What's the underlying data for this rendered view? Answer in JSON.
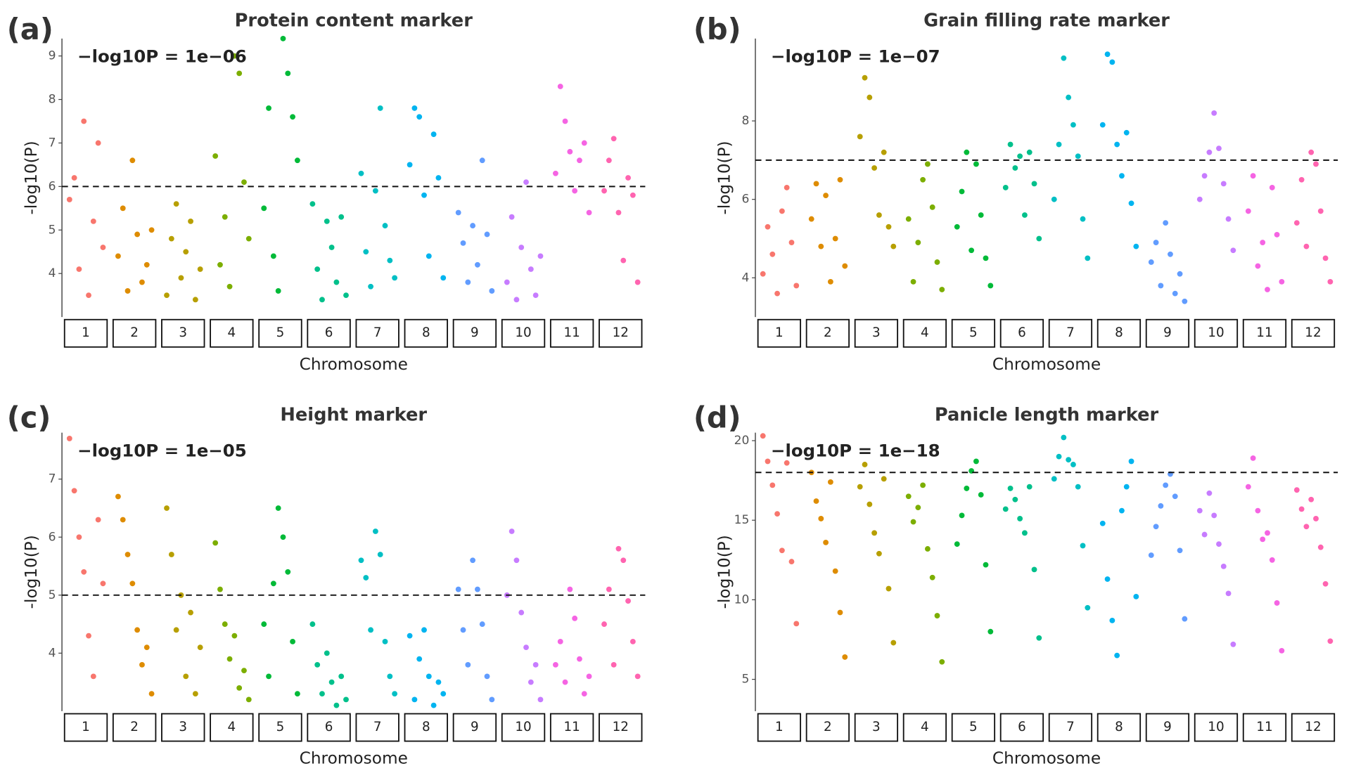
{
  "chart_data": [
    {
      "type": "manhattan",
      "panel_label": "(a)",
      "title": "Protein content marker",
      "annotation": "−log10P = 1e−06",
      "ylabel": "-log10(P)",
      "xlabel": "Chromosome",
      "threshold": 6,
      "ylim": [
        3,
        9.4
      ],
      "yticks": [
        4,
        5,
        6,
        7,
        8,
        9
      ],
      "categories": [
        "1",
        "2",
        "3",
        "4",
        "5",
        "6",
        "7",
        "8",
        "9",
        "10",
        "11",
        "12"
      ],
      "colors": [
        "#F8766D",
        "#DE8C00",
        "#B79F00",
        "#7CAE00",
        "#00BA38",
        "#00C08B",
        "#00BFC4",
        "#00B4F0",
        "#619CFF",
        "#C77CFF",
        "#F564E3",
        "#FF64B0"
      ],
      "values": [
        [
          5.7,
          6.2,
          4.1,
          7.5,
          3.5,
          5.2,
          7.0,
          4.6
        ],
        [
          4.4,
          5.5,
          3.6,
          6.6,
          4.9,
          3.8,
          4.2,
          5.0
        ],
        [
          3.5,
          4.8,
          5.6,
          3.9,
          4.5,
          5.2,
          3.4,
          4.1
        ],
        [
          6.7,
          4.2,
          5.3,
          3.7,
          9.0,
          8.6,
          6.1,
          4.8
        ],
        [
          5.5,
          7.8,
          4.4,
          3.6,
          9.4,
          8.6,
          7.6,
          6.6
        ],
        [
          5.6,
          4.1,
          3.4,
          5.2,
          4.6,
          3.8,
          5.3,
          3.5
        ],
        [
          6.3,
          4.5,
          3.7,
          5.9,
          7.8,
          5.1,
          4.3,
          3.9
        ],
        [
          6.5,
          7.8,
          7.6,
          5.8,
          4.4,
          7.2,
          6.2,
          3.9
        ],
        [
          5.4,
          4.7,
          3.8,
          5.1,
          4.2,
          6.6,
          4.9,
          3.6
        ],
        [
          3.8,
          5.3,
          3.4,
          4.6,
          6.1,
          4.1,
          3.5,
          4.4
        ],
        [
          6.3,
          8.3,
          7.5,
          6.8,
          5.9,
          6.6,
          7.0,
          5.4
        ],
        [
          5.9,
          6.6,
          7.1,
          5.4,
          4.3,
          6.2,
          5.8,
          3.8
        ]
      ]
    },
    {
      "type": "manhattan",
      "panel_label": "(b)",
      "title": "Grain filling rate marker",
      "annotation": "−log10P = 1e−07",
      "ylabel": "-log10(P)",
      "xlabel": "Chromosome",
      "threshold": 7,
      "ylim": [
        3,
        10.1
      ],
      "yticks": [
        4,
        6,
        8
      ],
      "categories": [
        "1",
        "2",
        "3",
        "4",
        "5",
        "6",
        "7",
        "8",
        "9",
        "10",
        "11",
        "12"
      ],
      "colors": [
        "#F8766D",
        "#DE8C00",
        "#B79F00",
        "#7CAE00",
        "#00BA38",
        "#00C08B",
        "#00BFC4",
        "#00B4F0",
        "#619CFF",
        "#C77CFF",
        "#F564E3",
        "#FF64B0"
      ],
      "values": [
        [
          4.1,
          5.3,
          4.6,
          3.6,
          5.7,
          6.3,
          4.9,
          3.8
        ],
        [
          5.5,
          6.4,
          4.8,
          6.1,
          3.9,
          5.0,
          6.5,
          4.3
        ],
        [
          7.6,
          9.1,
          8.6,
          6.8,
          5.6,
          7.2,
          5.3,
          4.8
        ],
        [
          5.5,
          3.9,
          4.9,
          6.5,
          6.9,
          5.8,
          4.4,
          3.7
        ],
        [
          5.3,
          6.2,
          7.2,
          4.7,
          6.9,
          5.6,
          4.5,
          3.8
        ],
        [
          6.3,
          7.4,
          6.8,
          7.1,
          5.6,
          7.2,
          6.4,
          5.0
        ],
        [
          6.0,
          7.4,
          9.6,
          8.6,
          7.9,
          7.1,
          5.5,
          4.5
        ],
        [
          7.9,
          9.7,
          9.5,
          7.4,
          6.6,
          7.7,
          5.9,
          4.8
        ],
        [
          4.4,
          4.9,
          3.8,
          5.4,
          4.6,
          3.6,
          4.1,
          3.4
        ],
        [
          6.0,
          6.6,
          7.2,
          8.2,
          7.3,
          6.4,
          5.5,
          4.7
        ],
        [
          5.7,
          6.6,
          4.3,
          4.9,
          3.7,
          6.3,
          5.1,
          3.9
        ],
        [
          5.4,
          6.5,
          4.8,
          7.2,
          6.9,
          5.7,
          4.5,
          3.9
        ]
      ]
    },
    {
      "type": "manhattan",
      "panel_label": "(c)",
      "title": "Height marker",
      "annotation": "−log10P = 1e−05",
      "ylabel": "-log10(P)",
      "xlabel": "Chromosome",
      "threshold": 5,
      "ylim": [
        3,
        7.8
      ],
      "yticks": [
        4,
        5,
        6,
        7
      ],
      "categories": [
        "1",
        "2",
        "3",
        "4",
        "5",
        "6",
        "7",
        "8",
        "9",
        "10",
        "11",
        "12"
      ],
      "colors": [
        "#F8766D",
        "#DE8C00",
        "#B79F00",
        "#7CAE00",
        "#00BA38",
        "#00C08B",
        "#00BFC4",
        "#00B4F0",
        "#619CFF",
        "#C77CFF",
        "#F564E3",
        "#FF64B0"
      ],
      "values": [
        [
          7.7,
          6.8,
          6.0,
          5.4,
          4.3,
          3.6,
          6.3,
          5.2
        ],
        [
          6.7,
          6.3,
          5.7,
          5.2,
          4.4,
          3.8,
          4.1,
          3.3
        ],
        [
          6.5,
          5.7,
          4.4,
          5.0,
          3.6,
          4.7,
          3.3,
          4.1
        ],
        [
          5.9,
          5.1,
          4.5,
          3.9,
          4.3,
          3.4,
          3.7,
          3.2
        ],
        [
          4.5,
          3.6,
          5.2,
          6.5,
          6.0,
          5.4,
          4.2,
          3.3
        ],
        [
          4.5,
          3.8,
          3.3,
          4.0,
          3.5,
          3.1,
          3.6,
          3.2
        ],
        [
          5.6,
          5.3,
          4.4,
          6.1,
          5.7,
          4.2,
          3.6,
          3.3
        ],
        [
          4.3,
          3.2,
          3.9,
          4.4,
          3.6,
          3.1,
          3.5,
          3.3
        ],
        [
          5.1,
          4.4,
          3.8,
          5.6,
          5.1,
          4.5,
          3.6,
          3.2
        ],
        [
          5.0,
          6.1,
          5.6,
          4.7,
          4.1,
          3.5,
          3.8,
          3.2
        ],
        [
          3.8,
          4.2,
          3.5,
          5.1,
          4.6,
          3.9,
          3.3,
          3.6
        ],
        [
          4.5,
          5.1,
          3.8,
          5.8,
          5.6,
          4.9,
          4.2,
          3.6
        ]
      ]
    },
    {
      "type": "manhattan",
      "panel_label": "(d)",
      "title": "Panicle length marker",
      "annotation": "−log10P = 1e−18",
      "ylabel": "-log10(P)",
      "xlabel": "Chromosome",
      "threshold": 18,
      "ylim": [
        3,
        20.5
      ],
      "yticks": [
        5,
        10,
        15,
        20
      ],
      "categories": [
        "1",
        "2",
        "3",
        "4",
        "5",
        "6",
        "7",
        "8",
        "9",
        "10",
        "11",
        "12"
      ],
      "colors": [
        "#F8766D",
        "#DE8C00",
        "#B79F00",
        "#7CAE00",
        "#00BA38",
        "#00C08B",
        "#00BFC4",
        "#00B4F0",
        "#619CFF",
        "#C77CFF",
        "#F564E3",
        "#FF64B0"
      ],
      "values": [
        [
          20.3,
          18.7,
          17.2,
          15.4,
          13.1,
          18.6,
          12.4,
          8.5
        ],
        [
          18.0,
          16.2,
          15.1,
          13.6,
          17.4,
          11.8,
          9.2,
          6.4
        ],
        [
          17.1,
          18.5,
          16.0,
          14.2,
          12.9,
          17.6,
          10.7,
          7.3
        ],
        [
          16.5,
          14.9,
          15.8,
          17.2,
          13.2,
          11.4,
          9.0,
          6.1
        ],
        [
          13.5,
          15.3,
          17.0,
          18.1,
          18.7,
          16.6,
          12.2,
          8.0
        ],
        [
          15.7,
          17.0,
          16.3,
          15.1,
          14.2,
          17.1,
          11.9,
          7.6
        ],
        [
          17.6,
          19.0,
          20.2,
          18.8,
          18.5,
          17.1,
          13.4,
          9.5
        ],
        [
          14.8,
          11.3,
          8.7,
          6.5,
          15.6,
          17.1,
          18.7,
          10.2
        ],
        [
          12.8,
          14.6,
          15.9,
          17.2,
          17.9,
          16.5,
          13.1,
          8.8
        ],
        [
          15.6,
          14.1,
          16.7,
          15.3,
          13.5,
          12.1,
          10.4,
          7.2
        ],
        [
          17.1,
          18.9,
          15.6,
          13.8,
          14.2,
          12.5,
          9.8,
          6.8
        ],
        [
          16.9,
          15.7,
          14.6,
          16.3,
          15.1,
          13.3,
          11.0,
          7.4
        ]
      ]
    }
  ]
}
